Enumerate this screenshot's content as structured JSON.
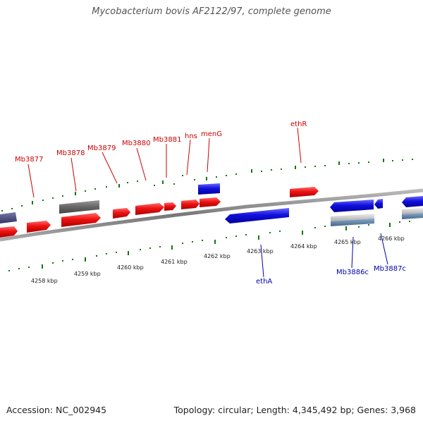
{
  "header": {
    "title": "Mycobacterium bovis AF2122/97, complete genome"
  },
  "footer": {
    "accession": "Accession: NC_002945",
    "stats": "Topology: circular; Length: 4,345,492 bp; Genes: 3,968"
  },
  "colors": {
    "forward_gene": "#ee1111",
    "reverse_gene": "#1111dd",
    "label_forward": "#cc0000",
    "label_reverse": "#0000aa",
    "ticks": "#117711",
    "backbone": "#888888",
    "grey_feature": "#666666"
  },
  "scale": {
    "kbp_ticks": [
      "4258 kbp",
      "4259 kbp",
      "4260 kbp",
      "4261 kbp",
      "4262 kbp",
      "4263 kbp",
      "4264 kbp",
      "4265 kbp",
      "4266 kbp"
    ]
  },
  "forward_labels": [
    "Mb3877",
    "Mb3878",
    "Mb3879",
    "Mb3880",
    "Mb3881",
    "hns",
    "menG",
    "ethR"
  ],
  "reverse_labels": [
    "ethA",
    "Mb3886c",
    "Mb3887c"
  ]
}
